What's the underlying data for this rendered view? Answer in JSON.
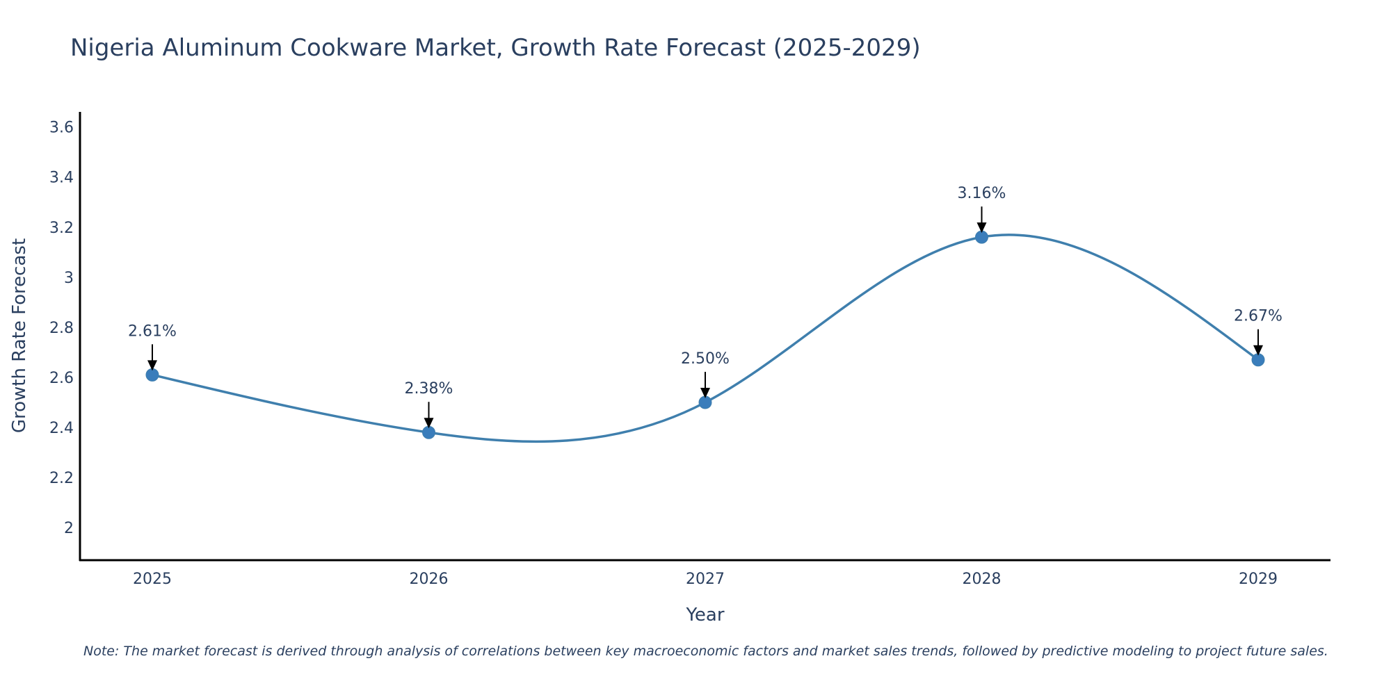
{
  "chart_data": {
    "type": "line",
    "title": "Nigeria Aluminum Cookware Market, Growth Rate Forecast (2025-2029)",
    "xlabel": "Year",
    "ylabel": "Growth Rate Forecast",
    "categories": [
      "2025",
      "2026",
      "2027",
      "2028",
      "2029"
    ],
    "values": [
      2.61,
      2.38,
      2.5,
      3.16,
      2.67
    ],
    "data_labels": [
      "2.61%",
      "2.38%",
      "2.50%",
      "3.16%",
      "2.67%"
    ],
    "y_ticks": [
      2,
      2.2,
      2.4,
      2.6,
      2.8,
      3,
      3.2,
      3.4,
      3.6
    ],
    "y_tick_labels": [
      "2",
      "2.2",
      "2.4",
      "2.6",
      "2.8",
      "3",
      "3.2",
      "3.4",
      "3.6"
    ],
    "ylim": [
      1.87,
      3.66
    ],
    "grid": false,
    "line_shape": "spline",
    "series_color": "#3f7fad",
    "marker_color": "#3a7dbb",
    "note": "Note: The market forecast is derived through analysis of correlations between key macroeconomic factors and market sales trends, followed by predictive modeling to project future sales."
  }
}
